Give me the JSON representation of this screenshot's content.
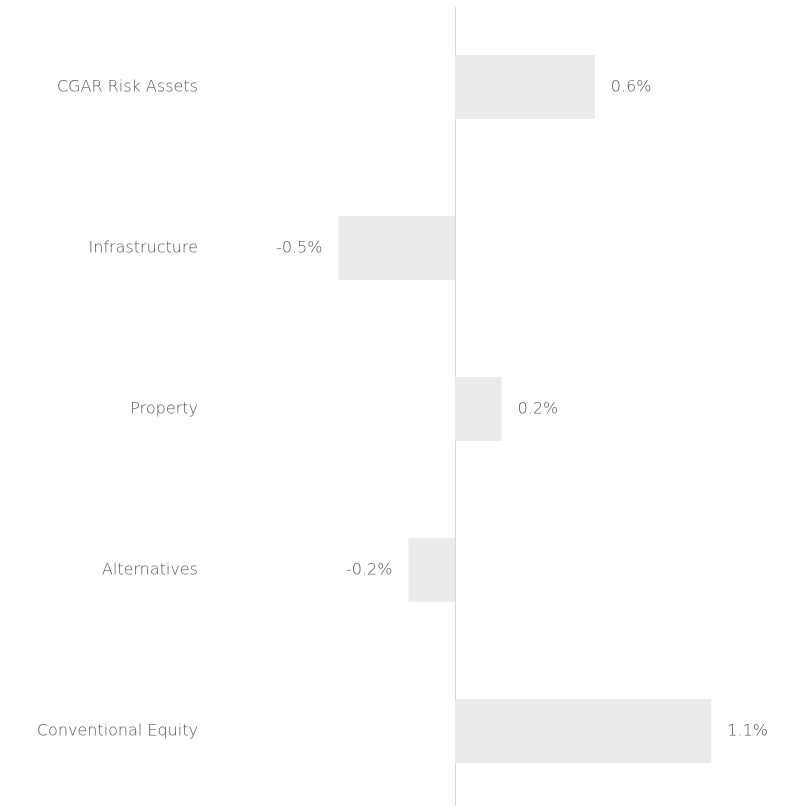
{
  "chart_data": {
    "type": "barh",
    "categories": [
      "CGAR Risk Assets",
      "Infrastructure",
      "Property",
      "Alternatives",
      "Conventional Equity"
    ],
    "values": [
      0.6,
      -0.5,
      0.2,
      -0.2,
      1.1
    ],
    "value_labels": [
      "0.6%",
      "-0.5%",
      "0.2%",
      "-0.2%",
      "1.1%"
    ],
    "color": "#ebebeb"
  }
}
